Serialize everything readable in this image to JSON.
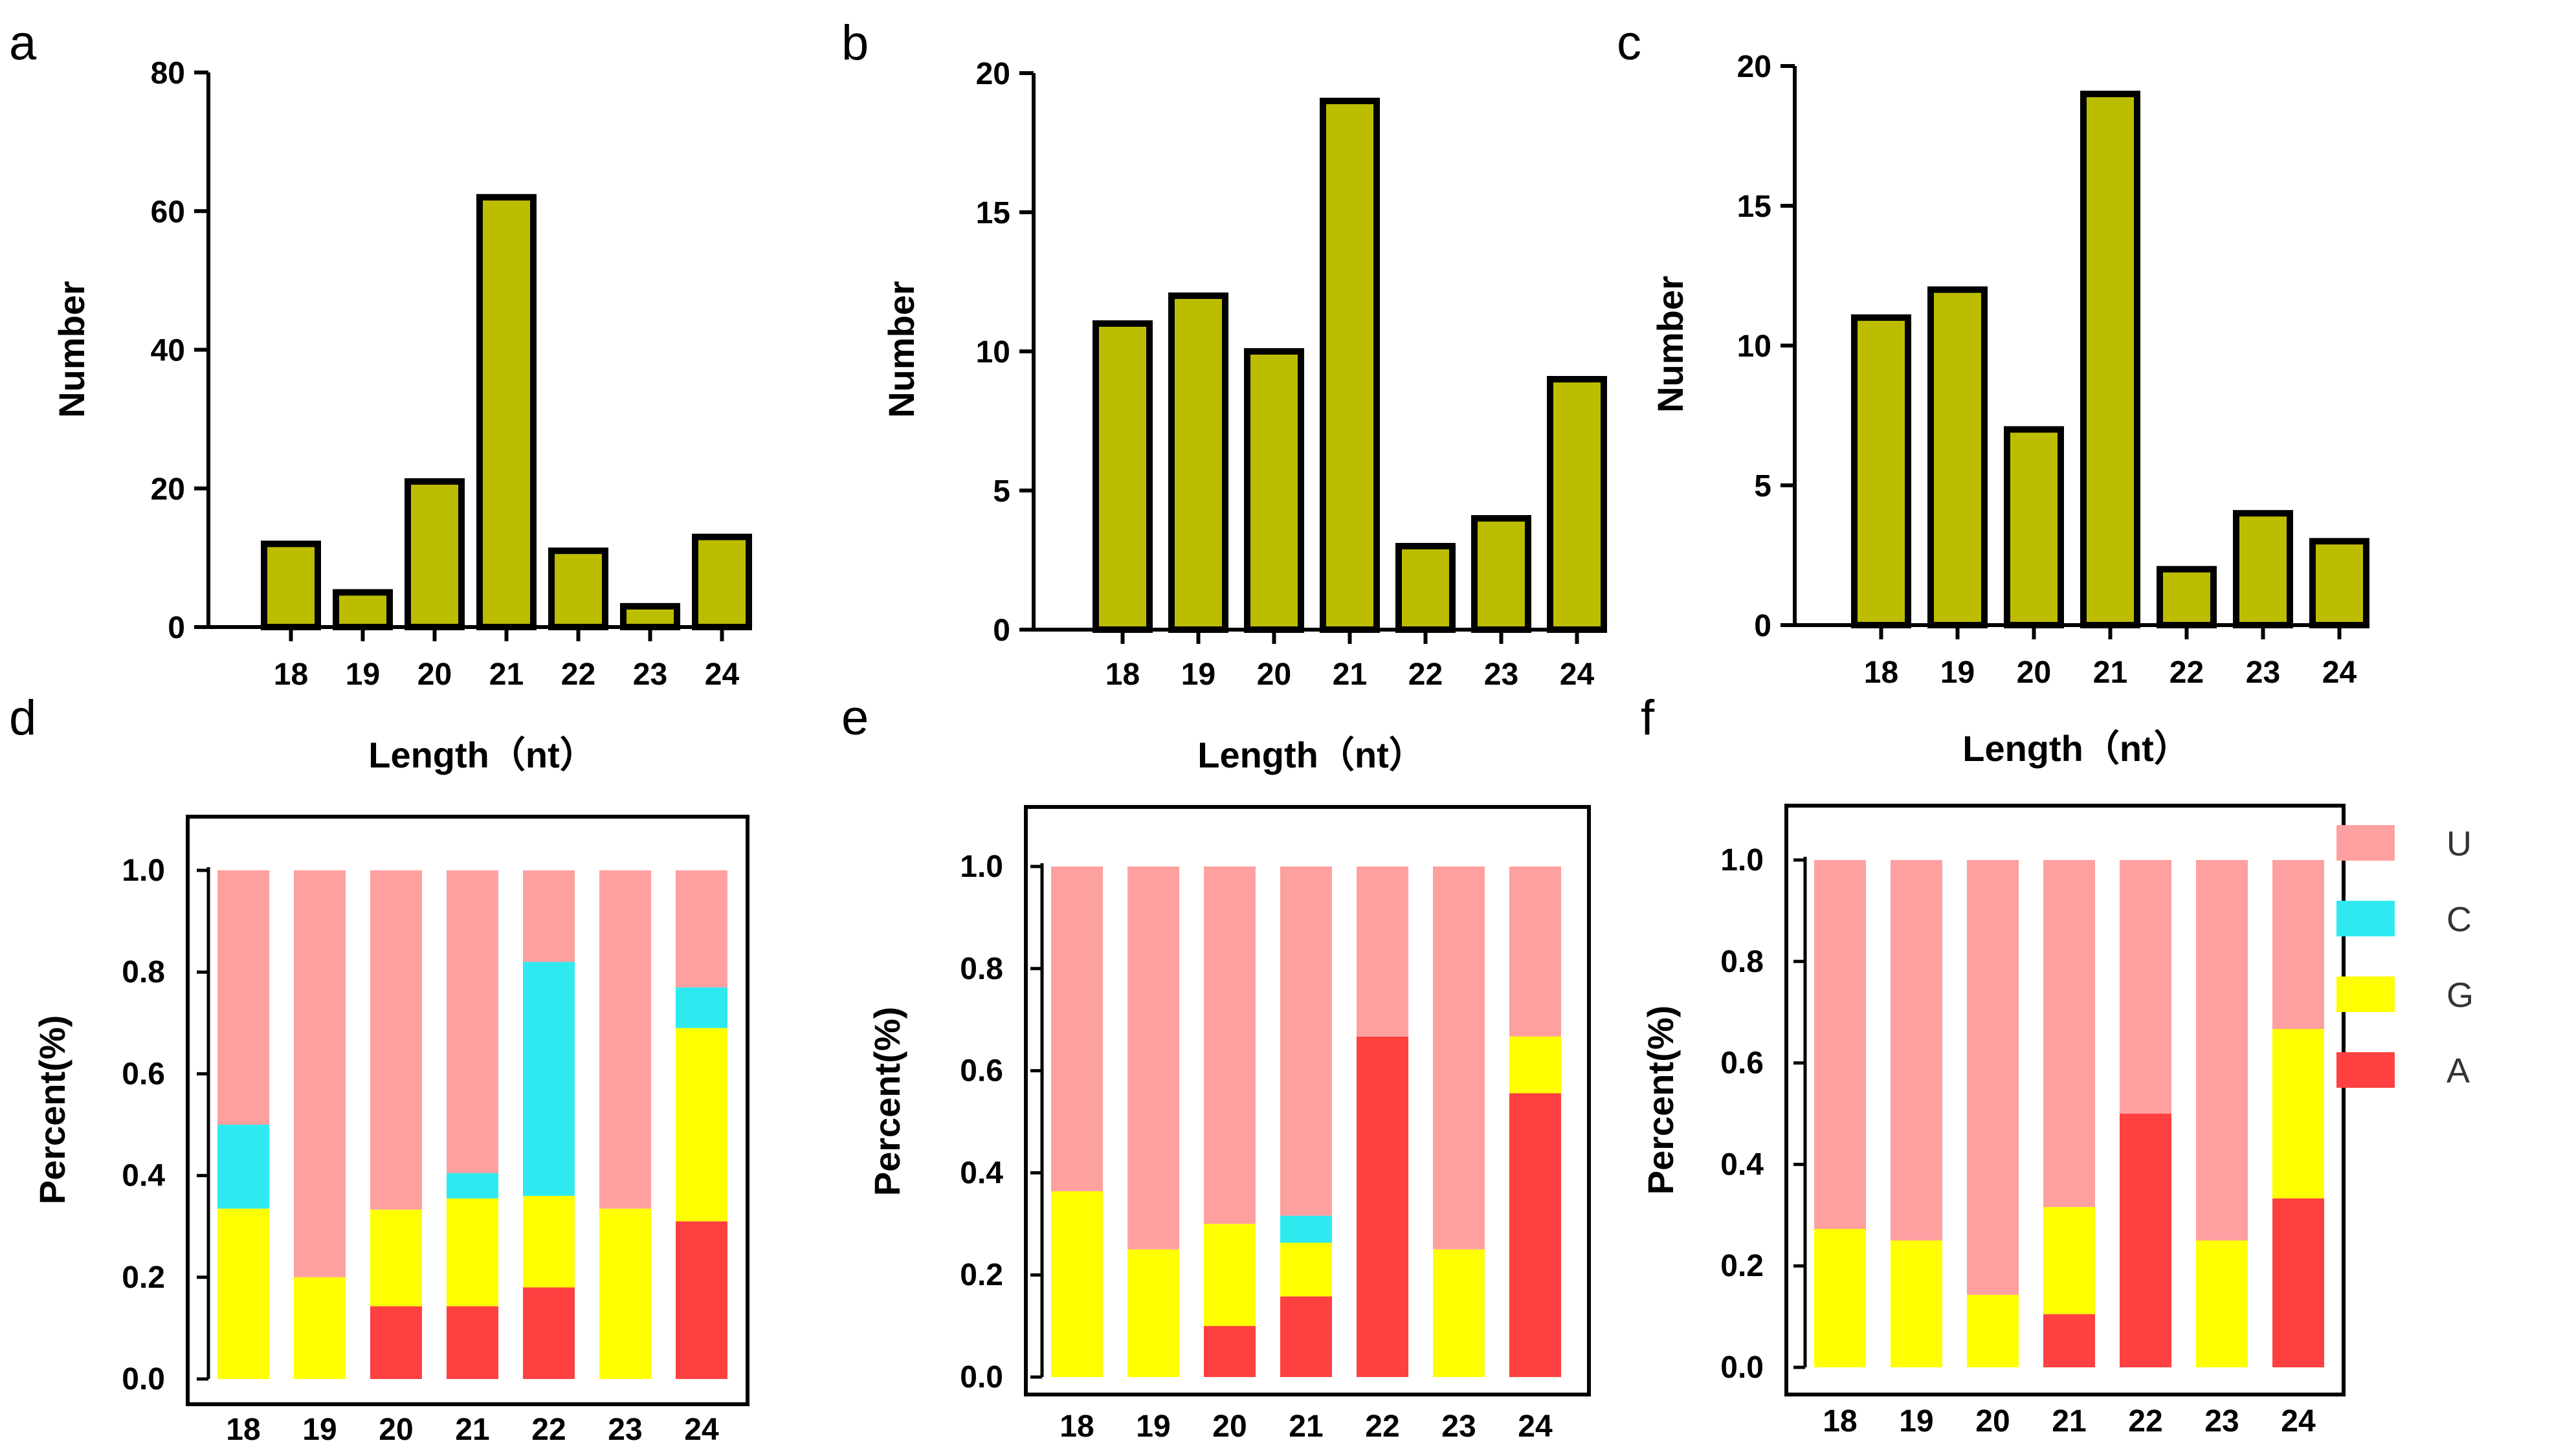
{
  "figure": {
    "legend": [
      {
        "label": "U",
        "color": "#FFA0A0"
      },
      {
        "label": "C",
        "color": "#2EEAF0"
      },
      {
        "label": "G",
        "color": "#FFFF00"
      },
      {
        "label": "A",
        "color": "#FF4040"
      }
    ]
  },
  "chart_data": [
    {
      "panel": "a",
      "type": "bar",
      "categories": [
        "18",
        "19",
        "20",
        "21",
        "22",
        "23",
        "24"
      ],
      "values": [
        12,
        5,
        21,
        62,
        11,
        3,
        13
      ],
      "xlabel": "Length（nt）",
      "ylabel": "Number",
      "ylim": [
        0,
        80
      ],
      "yticks": [
        "0",
        "20",
        "40",
        "60",
        "80"
      ],
      "bar_color": "#BDBD00"
    },
    {
      "panel": "b",
      "type": "bar",
      "categories": [
        "18",
        "19",
        "20",
        "21",
        "22",
        "23",
        "24"
      ],
      "values": [
        11,
        12,
        10,
        19,
        3,
        4,
        9
      ],
      "xlabel": "Length（nt）",
      "ylabel": "Number",
      "ylim": [
        0,
        20
      ],
      "yticks": [
        "0",
        "5",
        "10",
        "15",
        "20"
      ],
      "bar_color": "#BDBD00"
    },
    {
      "panel": "c",
      "type": "bar",
      "categories": [
        "18",
        "19",
        "20",
        "21",
        "22",
        "23",
        "24"
      ],
      "values": [
        11,
        12,
        7,
        19,
        2,
        4,
        3
      ],
      "xlabel": "Length（nt）",
      "ylabel": "Number",
      "ylim": [
        0,
        20
      ],
      "yticks": [
        "0",
        "5",
        "10",
        "15",
        "20"
      ],
      "bar_color": "#BDBD00"
    },
    {
      "panel": "d",
      "type": "bar",
      "stacked": true,
      "categories": [
        "18",
        "19",
        "20",
        "21",
        "22",
        "23",
        "24"
      ],
      "ylabel": "Percent(%)",
      "ylim": [
        0,
        1.1
      ],
      "yticks": [
        "0.0",
        "0.2",
        "0.4",
        "0.6",
        "0.8",
        "1.0"
      ],
      "series": [
        {
          "name": "A",
          "values": [
            0,
            0,
            0.143,
            0.143,
            0.18,
            0,
            0.31
          ]
        },
        {
          "name": "G",
          "values": [
            0.335,
            0.2,
            0.19,
            0.212,
            0.18,
            0.335,
            0.38
          ]
        },
        {
          "name": "C",
          "values": [
            0.165,
            0,
            0,
            0.05,
            0.46,
            0,
            0.08
          ]
        },
        {
          "name": "U",
          "values": [
            0.5,
            0.8,
            0.667,
            0.595,
            0.18,
            0.665,
            0.23
          ]
        }
      ]
    },
    {
      "panel": "e",
      "type": "bar",
      "stacked": true,
      "categories": [
        "18",
        "19",
        "20",
        "21",
        "22",
        "23",
        "24"
      ],
      "ylabel": "Percent(%)",
      "ylim": [
        0,
        1.1
      ],
      "yticks": [
        "0.0",
        "0.2",
        "0.4",
        "0.6",
        "0.8",
        "1.0"
      ],
      "series": [
        {
          "name": "A",
          "values": [
            0,
            0,
            0.1,
            0.158,
            0.667,
            0,
            0.556
          ]
        },
        {
          "name": "G",
          "values": [
            0.364,
            0.25,
            0.2,
            0.105,
            0,
            0.25,
            0.111
          ]
        },
        {
          "name": "C",
          "values": [
            0,
            0,
            0,
            0.053,
            0,
            0,
            0
          ]
        },
        {
          "name": "U",
          "values": [
            0.636,
            0.75,
            0.7,
            0.684,
            0.333,
            0.75,
            0.333
          ]
        }
      ]
    },
    {
      "panel": "f",
      "type": "bar",
      "stacked": true,
      "categories": [
        "18",
        "19",
        "20",
        "21",
        "22",
        "23",
        "24"
      ],
      "ylabel": "Percent(%)",
      "ylim": [
        0,
        1.1
      ],
      "yticks": [
        "0.0",
        "0.2",
        "0.4",
        "0.6",
        "0.8",
        "1.0"
      ],
      "series": [
        {
          "name": "A",
          "values": [
            0,
            0,
            0,
            0.105,
            0.5,
            0,
            0.333
          ]
        },
        {
          "name": "G",
          "values": [
            0.273,
            0.25,
            0.143,
            0.211,
            0,
            0.25,
            0.334
          ]
        },
        {
          "name": "C",
          "values": [
            0,
            0,
            0,
            0,
            0,
            0,
            0
          ]
        },
        {
          "name": "U",
          "values": [
            0.727,
            0.75,
            0.857,
            0.684,
            0.5,
            0.75,
            0.333
          ]
        }
      ]
    }
  ]
}
